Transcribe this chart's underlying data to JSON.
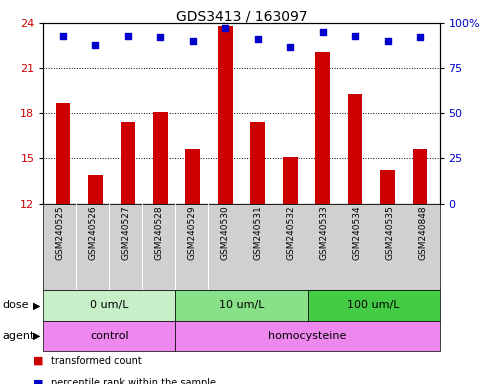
{
  "title": "GDS3413 / 163097",
  "samples": [
    "GSM240525",
    "GSM240526",
    "GSM240527",
    "GSM240528",
    "GSM240529",
    "GSM240530",
    "GSM240531",
    "GSM240532",
    "GSM240533",
    "GSM240534",
    "GSM240535",
    "GSM240848"
  ],
  "bar_values": [
    18.7,
    13.9,
    17.4,
    18.1,
    15.6,
    23.8,
    17.4,
    15.1,
    22.1,
    19.3,
    14.2,
    15.6
  ],
  "dot_values": [
    93,
    88,
    93,
    92,
    90,
    97,
    91,
    87,
    95,
    93,
    90,
    92
  ],
  "ylim_left": [
    12,
    24
  ],
  "ylim_right": [
    0,
    100
  ],
  "yticks_left": [
    12,
    15,
    18,
    21,
    24
  ],
  "yticks_right": [
    0,
    25,
    50,
    75,
    100
  ],
  "bar_color": "#cc0000",
  "dot_color": "#0000cc",
  "bar_bottom": 12,
  "dose_groups": [
    {
      "label": "0 um/L",
      "start": 0,
      "end": 4,
      "color": "#c8f0c8"
    },
    {
      "label": "10 um/L",
      "start": 4,
      "end": 8,
      "color": "#88e088"
    },
    {
      "label": "100 um/L",
      "start": 8,
      "end": 12,
      "color": "#44cc44"
    }
  ],
  "agent_groups": [
    {
      "label": "control",
      "start": 0,
      "end": 4,
      "color": "#ee88ee"
    },
    {
      "label": "homocysteine",
      "start": 4,
      "end": 12,
      "color": "#ee88ee"
    }
  ],
  "legend_items": [
    {
      "label": "transformed count",
      "color": "#cc0000"
    },
    {
      "label": "percentile rank within the sample",
      "color": "#0000cc"
    }
  ],
  "grid_color": "black",
  "grid_linestyle": "dotted",
  "plot_bg": "#ffffff",
  "xtick_bg": "#d0d0d0",
  "tick_label_color_left": "#cc0000",
  "tick_label_color_right": "#0000cc",
  "dose_label_color": "black",
  "agent_label_color": "black",
  "label_fontsize": 8,
  "tick_fontsize": 8,
  "sample_fontsize": 6.5,
  "title_fontsize": 10,
  "bar_width": 0.45
}
